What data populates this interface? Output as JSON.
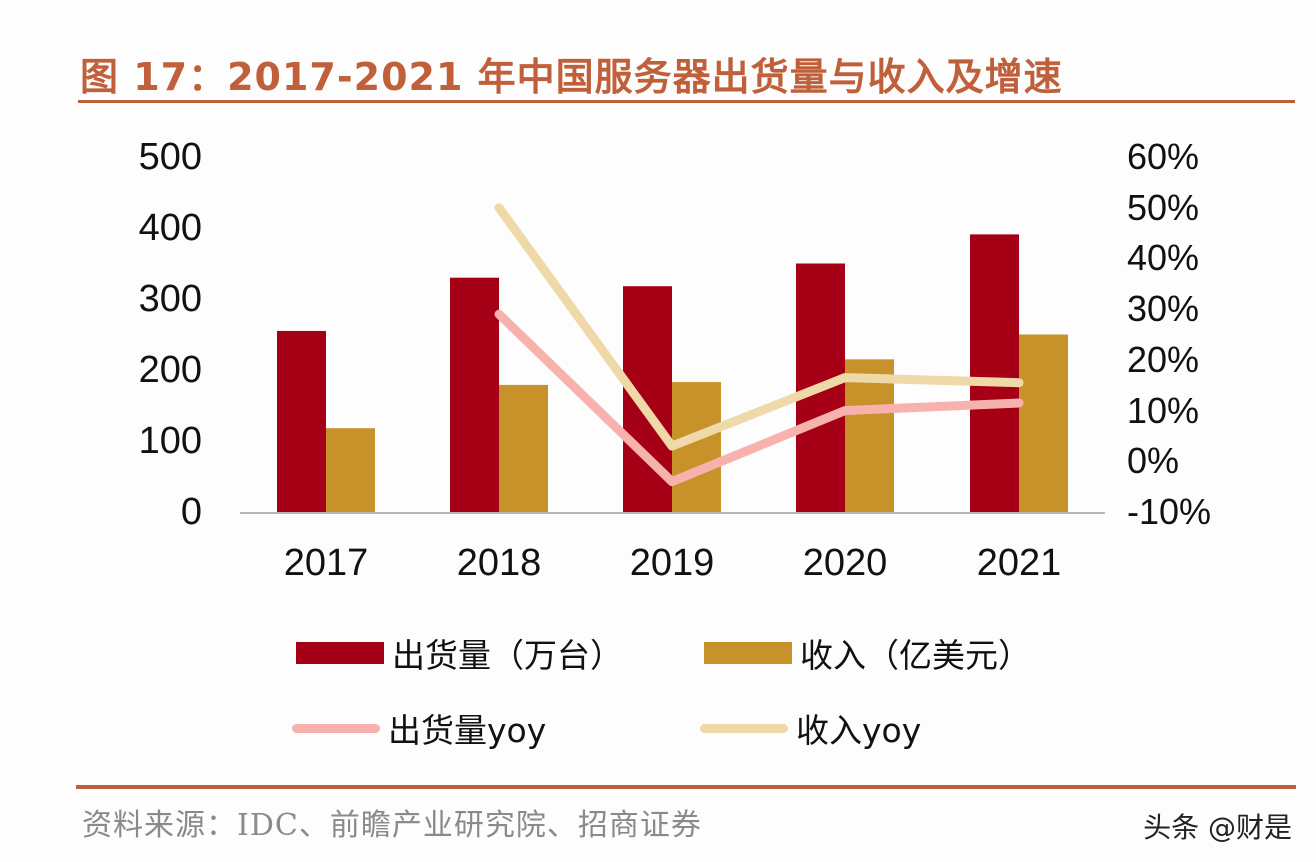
{
  "title": "图 17：2017-2021 年中国服务器出货量与收入及增速",
  "source": "资料来源：IDC、前瞻产业研究院、招商证券",
  "watermark": "头条 @财是",
  "colors": {
    "title": "#C0603A",
    "shipments_bar": "#A50016",
    "revenue_bar": "#C8922A",
    "shipments_yoy_line": "#F7B2AE",
    "revenue_yoy_line": "#F0D9A8",
    "axis": "#b8b8b8"
  },
  "axes": {
    "left_ticks": [
      "500",
      "400",
      "300",
      "200",
      "100",
      "0"
    ],
    "right_ticks": [
      "60%",
      "50%",
      "40%",
      "30%",
      "20%",
      "10%",
      "0%",
      "-10%"
    ],
    "x_ticks": [
      "2017",
      "2018",
      "2019",
      "2020",
      "2021"
    ]
  },
  "legend": [
    {
      "label": "出货量（万台）",
      "kind": "bar"
    },
    {
      "label": "收入（亿美元）",
      "kind": "bar"
    },
    {
      "label": "出货量yoy",
      "kind": "line"
    },
    {
      "label": "收入yoy",
      "kind": "line"
    }
  ],
  "chart_data": {
    "type": "bar",
    "title": "图 17：2017-2021 年中国服务器出货量与收入及增速",
    "categories": [
      "2017",
      "2018",
      "2019",
      "2020",
      "2021"
    ],
    "series": [
      {
        "name": "出货量（万台）",
        "type": "bar",
        "axis": "left",
        "values": [
          255,
          330,
          318,
          350,
          391
        ]
      },
      {
        "name": "收入（亿美元）",
        "type": "bar",
        "axis": "left",
        "values": [
          118,
          179,
          183,
          215,
          250
        ]
      },
      {
        "name": "出货量yoy",
        "type": "line",
        "axis": "right",
        "unit": "%",
        "values": [
          null,
          29,
          -4,
          10,
          11.5
        ]
      },
      {
        "name": "收入yoy",
        "type": "line",
        "axis": "right",
        "unit": "%",
        "values": [
          null,
          50,
          3,
          16.5,
          15.5
        ]
      }
    ],
    "xlabel": "",
    "ylabel_left": "",
    "ylabel_right": "",
    "ylim_left": [
      0,
      500
    ],
    "ylim_right": [
      -10,
      60
    ],
    "grid": false,
    "legend_position": "bottom",
    "source": "资料来源：IDC、前瞻产业研究院、招商证券"
  }
}
